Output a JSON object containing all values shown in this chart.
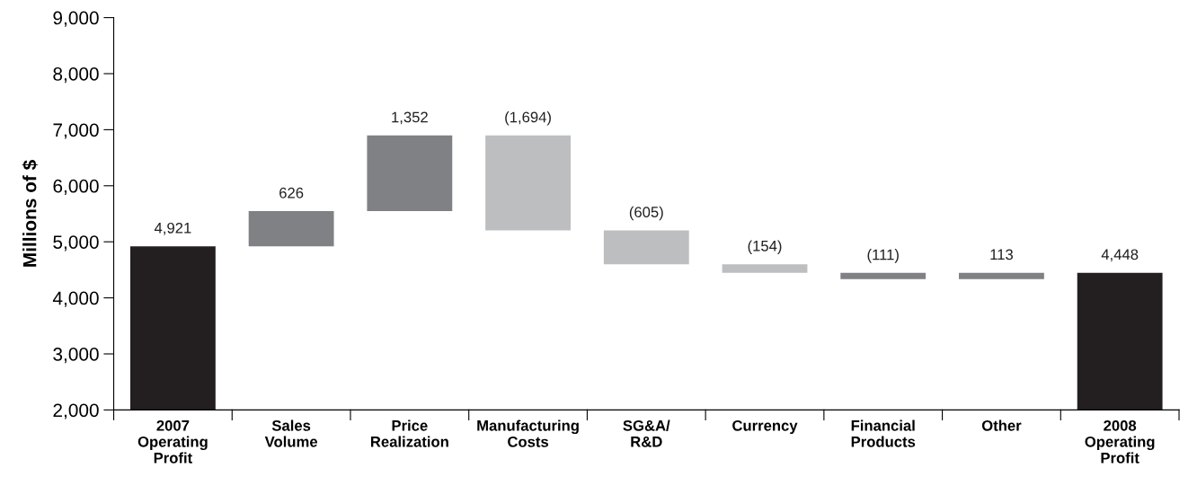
{
  "chart_data": {
    "type": "bar",
    "ylabel": "Millions of $",
    "categories": [
      "2007\nOperating\nProfit",
      "Sales\nVolume",
      "Price\nRealization",
      "Manufacturing\nCosts",
      "SG&A/\nR&D",
      "Currency",
      "Financial\nProducts",
      "Other",
      "2008\nOperating\nProfit"
    ],
    "values": [
      4921,
      626,
      1352,
      -1694,
      -605,
      -154,
      -111,
      113,
      4448
    ],
    "base": [
      0,
      4921,
      5547,
      6899,
      5205,
      4600,
      4446,
      4335,
      0
    ],
    "colors": [
      "#231f20",
      "#808184",
      "#808184",
      "#bcbec0",
      "#bcbec0",
      "#bcbec0",
      "#808184",
      "#808184",
      "#231f20"
    ],
    "value_labels": [
      "4,921",
      "626",
      "1,352",
      "(1,694)",
      "(605)",
      "(154)",
      "(111)",
      "113",
      "4,448"
    ],
    "ylim": [
      2000,
      9000
    ],
    "yticks": [
      {
        "value": 2000,
        "label": "2,000"
      },
      {
        "value": 3000,
        "label": "3,000"
      },
      {
        "value": 4000,
        "label": "4,000"
      },
      {
        "value": 5000,
        "label": "5,000"
      },
      {
        "value": 6000,
        "label": "6,000"
      },
      {
        "value": 7000,
        "label": "7,000"
      },
      {
        "value": 8000,
        "label": "8,000"
      },
      {
        "value": 9000,
        "label": "9,000"
      }
    ],
    "grid": false,
    "legend": false
  }
}
